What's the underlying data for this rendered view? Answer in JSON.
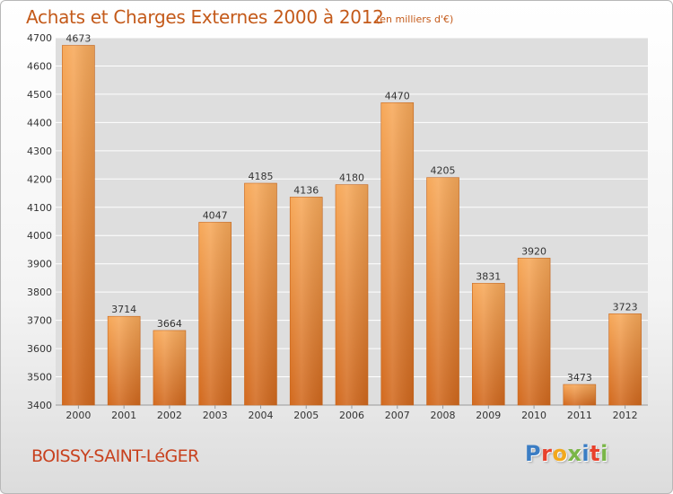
{
  "header": {
    "title": "Achats et Charges Externes 2000 à 2012",
    "subtitle": "(en milliers d'€)"
  },
  "footer": {
    "commune": "BOISSY-SAINT-LéGER",
    "logo_letters": [
      "P",
      "r",
      "o",
      "x",
      "i",
      "t",
      "i"
    ],
    "logo_colors": [
      "#3b7dc4",
      "#e8412c",
      "#f2a81d",
      "#7ab648",
      "#3b7dc4",
      "#e8412c",
      "#7ab648"
    ]
  },
  "chart_data": {
    "type": "bar",
    "title": "Achats et Charges Externes 2000 à 2012",
    "subtitle": "(en milliers d'€)",
    "xlabel": "",
    "ylabel": "",
    "categories": [
      "2000",
      "2001",
      "2002",
      "2003",
      "2004",
      "2005",
      "2006",
      "2007",
      "2008",
      "2009",
      "2010",
      "2011",
      "2012"
    ],
    "values": [
      4673,
      3714,
      3664,
      4047,
      4185,
      4136,
      4180,
      4470,
      4205,
      3831,
      3920,
      3473,
      3723
    ],
    "value_labels": [
      "4673",
      "3714",
      "3664",
      "4047",
      "4185",
      "4136",
      "4180",
      "4470",
      "4205",
      "3831",
      "3920",
      "3473",
      "3723"
    ],
    "ylim": [
      3400,
      4700
    ],
    "yticks": [
      3400,
      3500,
      3600,
      3700,
      3800,
      3900,
      4000,
      4100,
      4200,
      4300,
      4400,
      4500,
      4600,
      4700
    ],
    "grid": true,
    "bar_color": "#f0a050",
    "bar_edge_color": "#c8661c",
    "plot_background": "#dedede"
  }
}
